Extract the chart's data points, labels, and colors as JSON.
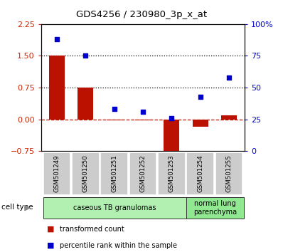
{
  "title": "GDS4256 / 230980_3p_x_at",
  "categories": [
    "GSM501249",
    "GSM501250",
    "GSM501251",
    "GSM501252",
    "GSM501253",
    "GSM501254",
    "GSM501255"
  ],
  "red_values": [
    1.5,
    0.75,
    -0.03,
    -0.03,
    -0.92,
    -0.18,
    0.1
  ],
  "blue_values": [
    88,
    75,
    33,
    31,
    26,
    43,
    58
  ],
  "ylim_left": [
    -0.75,
    2.25
  ],
  "ylim_right": [
    0,
    100
  ],
  "yticks_left": [
    -0.75,
    0,
    0.75,
    1.5,
    2.25
  ],
  "yticks_right": [
    0,
    25,
    50,
    75,
    100
  ],
  "hlines_dotted": [
    0.75,
    1.5
  ],
  "hline_dashed": 0,
  "cell_type_groups": [
    {
      "label": "caseous TB granulomas",
      "span": [
        0,
        5
      ],
      "color": "#b2f0b2"
    },
    {
      "label": "normal lung\nparenchyma",
      "span": [
        5,
        7
      ],
      "color": "#90e890"
    }
  ],
  "bar_color": "#bb1100",
  "dot_color": "#0000cc",
  "bar_width": 0.55,
  "legend_red": "transformed count",
  "legend_blue": "percentile rank within the sample",
  "cell_type_label": "cell type",
  "background_plot": "#ffffff",
  "background_xtick": "#cccccc",
  "tick_label_color_left": "#cc2200",
  "tick_label_color_right": "#0000cc"
}
